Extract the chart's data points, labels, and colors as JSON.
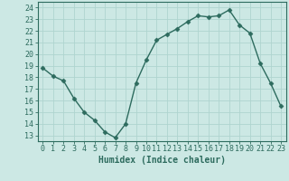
{
  "x": [
    0,
    1,
    2,
    3,
    4,
    5,
    6,
    7,
    8,
    9,
    10,
    11,
    12,
    13,
    14,
    15,
    16,
    17,
    18,
    19,
    20,
    21,
    22,
    23
  ],
  "y": [
    18.8,
    18.1,
    17.7,
    16.2,
    15.0,
    14.3,
    13.3,
    12.8,
    14.0,
    17.5,
    19.5,
    21.2,
    21.7,
    22.2,
    22.8,
    23.3,
    23.2,
    23.3,
    23.8,
    22.5,
    21.8,
    19.2,
    17.5,
    15.5
  ],
  "line_color": "#2d6b5e",
  "marker": "D",
  "markersize": 2.5,
  "linewidth": 1.0,
  "bg_color": "#cce8e4",
  "grid_color": "#afd4cf",
  "xlabel": "Humidex (Indice chaleur)",
  "xlabel_fontsize": 7,
  "xlim": [
    -0.5,
    23.5
  ],
  "ylim": [
    12.5,
    24.5
  ],
  "yticks": [
    13,
    14,
    15,
    16,
    17,
    18,
    19,
    20,
    21,
    22,
    23,
    24
  ],
  "xticks": [
    0,
    1,
    2,
    3,
    4,
    5,
    6,
    7,
    8,
    9,
    10,
    11,
    12,
    13,
    14,
    15,
    16,
    17,
    18,
    19,
    20,
    21,
    22,
    23
  ],
  "tick_fontsize": 6,
  "axis_color": "#2d6b5e"
}
